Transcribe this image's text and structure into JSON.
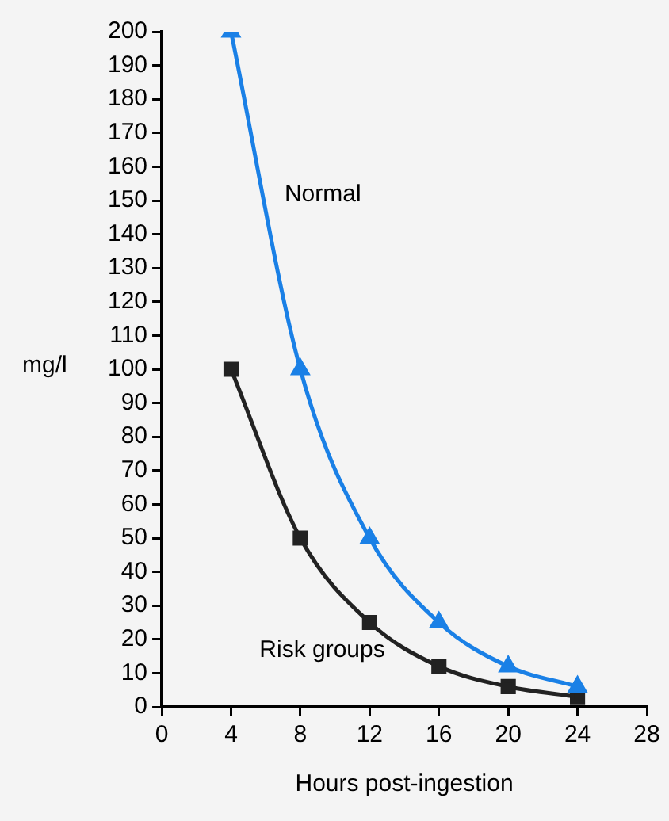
{
  "chart_data": {
    "type": "line",
    "xlabel": "Hours post-ingestion",
    "ylabel": "mg/l",
    "xlim": [
      0,
      28
    ],
    "xticks": [
      0,
      4,
      8,
      12,
      16,
      20,
      24,
      28
    ],
    "ylim": [
      0,
      200
    ],
    "yticks": [
      0,
      10,
      20,
      30,
      40,
      50,
      60,
      70,
      80,
      90,
      100,
      110,
      120,
      130,
      140,
      150,
      160,
      170,
      180,
      190,
      200
    ],
    "grid": false,
    "legend": false,
    "series": [
      {
        "name": "Normal",
        "color": "#1a80e6",
        "marker": "triangle",
        "x": [
          4,
          8,
          12,
          16,
          20,
          24
        ],
        "values": [
          200,
          100,
          50,
          25,
          12,
          6
        ]
      },
      {
        "name": "Risk groups",
        "color": "#222222",
        "marker": "square",
        "x": [
          4,
          8,
          12,
          16,
          20,
          24
        ],
        "values": [
          100,
          50,
          25,
          12,
          6,
          3
        ]
      }
    ]
  }
}
